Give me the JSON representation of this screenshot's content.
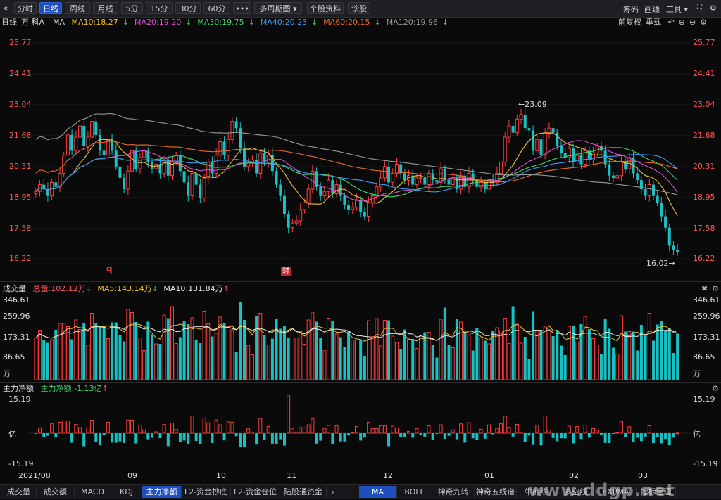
{
  "toolbar": {
    "tabs": [
      "分时",
      "日线",
      "周线",
      "月线",
      "5分",
      "15分",
      "30分",
      "60分",
      "•••",
      "多周期图 ▾",
      "个股资料",
      "诊股"
    ],
    "active_tab": "日线",
    "right": [
      "筹码",
      "画线",
      "工具 ▾"
    ]
  },
  "legend": {
    "period": "日线",
    "stock": "万 科A",
    "ma_label": "MA",
    "items": [
      {
        "text": "MA10:18.27",
        "arrow": "↓",
        "color": "#f2c230"
      },
      {
        "text": "MA20:19.20",
        "arrow": "↓",
        "color": "#e24fd6"
      },
      {
        "text": "MA30:19.75",
        "arrow": "↓",
        "color": "#3fd66b"
      },
      {
        "text": "MA40:20.23",
        "arrow": "↓",
        "color": "#3a9cf2"
      },
      {
        "text": "MA60:20.15",
        "arrow": "↓",
        "color": "#f06a2a"
      },
      {
        "text": "MA120:19.96",
        "arrow": "↓",
        "color": "#9a9a9a"
      }
    ],
    "right": [
      "前复权",
      "垂载"
    ]
  },
  "price_axis": [
    "25.77",
    "24.41",
    "23.04",
    "21.68",
    "20.31",
    "18.95",
    "17.58",
    "16.22"
  ],
  "annotations": {
    "high": "23.09",
    "low": "16.02",
    "marker_q": "q",
    "marker_cai": "财"
  },
  "volume_panel": {
    "name": "成交量",
    "total": "总量:102.12万",
    "total_arrow": "↓",
    "ma5": "MA5:143.14万",
    "ma5_arrow": "↓",
    "ma10": "MA10:131.84万",
    "ma10_arrow": "↑",
    "axis": [
      "346.61",
      "259.96",
      "173.31",
      "86.65",
      "万"
    ]
  },
  "flow_panel": {
    "name": "主力净额",
    "value": "主力净额:-1.13亿",
    "arrow": "↑",
    "axis": [
      "15.19",
      "亿",
      "-15.19"
    ]
  },
  "x_axis": [
    "2021/08",
    "09",
    "10",
    "11",
    "12",
    "01",
    "02",
    "03"
  ],
  "bottom_tabs": [
    "成交量",
    "成交额",
    "MACD",
    "KDJ",
    "主力净额",
    "L2-资金抄底",
    "L2-资金仓位",
    "陆股通资金"
  ],
  "bottom_tabs_active": "主力净额",
  "indicator_tabs": [
    "MA",
    "BOLL",
    "神奇九转",
    "神奇五线谱",
    "牛熊线",
    "多空线",
    "EXPMA",
    "指标管理"
  ],
  "indicator_active": "MA",
  "watermark": "www.ddgp.net",
  "colors": {
    "up": "#ff3b3b",
    "down": "#17c2c4",
    "bg": "#0a0a0a",
    "accent": "#1f4fbf"
  },
  "chart_data": {
    "type": "candlestick",
    "ylim": [
      16.22,
      25.77
    ],
    "closes": [
      19.2,
      19.5,
      19.3,
      19.0,
      19.6,
      19.4,
      20.0,
      20.8,
      21.7,
      21.0,
      21.6,
      22.1,
      21.2,
      21.6,
      22.3,
      21.7,
      21.0,
      20.8,
      21.5,
      21.0,
      20.3,
      19.8,
      19.3,
      20.1,
      21.0,
      20.2,
      20.7,
      21.0,
      20.5,
      20.2,
      20.4,
      20.0,
      20.6,
      19.9,
      20.5,
      20.8,
      20.1,
      19.6,
      19.0,
      20.0,
      19.5,
      18.9,
      19.8,
      20.5,
      20.0,
      20.8,
      21.4,
      20.8,
      21.5,
      22.3,
      22.0,
      21.1,
      20.3,
      20.5,
      20.6,
      20.0,
      20.9,
      20.5,
      20.8,
      20.1,
      19.5,
      19.0,
      18.2,
      17.6,
      17.8,
      17.9,
      18.4,
      18.7,
      19.3,
      20.1,
      19.4,
      19.0,
      19.2,
      19.7,
      19.1,
      19.5,
      19.0,
      18.6,
      18.4,
      18.5,
      18.8,
      18.3,
      18.1,
      18.7,
      19.0,
      19.4,
      19.8,
      20.3,
      19.6,
      20.0,
      20.4,
      20.0,
      19.7,
      19.9,
      19.5,
      19.8,
      19.8,
      19.5,
      20.0,
      19.7,
      19.6,
      20.2,
      19.7,
      19.5,
      19.8,
      19.3,
      19.9,
      19.4,
      20.0,
      19.7,
      19.4,
      19.6,
      19.3,
      19.7,
      19.6,
      20.0,
      20.5,
      21.6,
      22.1,
      21.8,
      22.4,
      22.6,
      22.0,
      21.9,
      21.0,
      21.5,
      20.8,
      21.8,
      22.0,
      21.8,
      21.2,
      20.9,
      20.7,
      21.1,
      20.5,
      20.8,
      20.4,
      21.0,
      20.6,
      20.9,
      21.2,
      21.0,
      20.4,
      19.9,
      19.8,
      19.9,
      20.5,
      20.2,
      20.7,
      20.0,
      19.7,
      19.3,
      19.0,
      19.5,
      19.0,
      18.7,
      18.1,
      17.6,
      16.8,
      16.6,
      16.5
    ]
  }
}
